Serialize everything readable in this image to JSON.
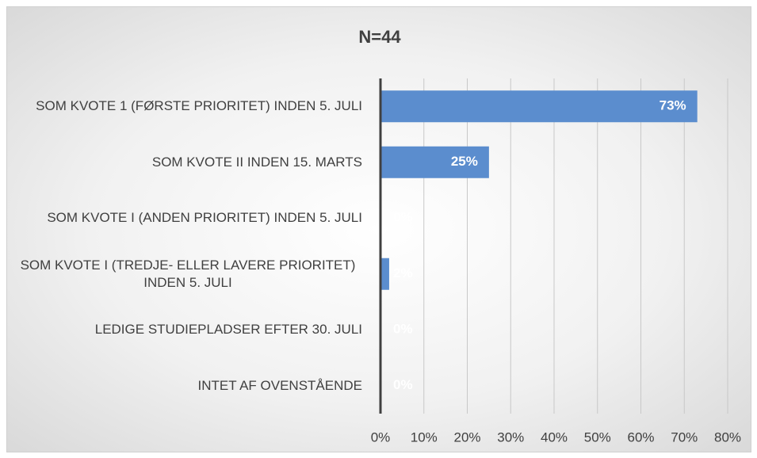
{
  "chart_data": {
    "type": "barh",
    "title": "N=44",
    "categories": [
      "SOM KVOTE 1 (FØRSTE PRIORITET) INDEN 5. JULI",
      "SOM KVOTE II INDEN 15. MARTS",
      "SOM KVOTE I (ANDEN PRIORITET) INDEN 5. JULI",
      "SOM KVOTE I (TREDJE- ELLER LAVERE PRIORITET) INDEN 5. JULI",
      "LEDIGE STUDIEPLADSER EFTER 30. JULI",
      "INTET AF OVENSTÅENDE"
    ],
    "values": [
      73,
      25,
      0,
      2,
      0,
      0
    ],
    "value_labels": [
      "73%",
      "25%",
      "0%",
      "2%",
      "0%",
      "0%"
    ],
    "color": "#5b8dce",
    "xlim": [
      0,
      80
    ],
    "xticks": [
      {
        "value": 0,
        "label": "0%"
      },
      {
        "value": 10,
        "label": "10%"
      },
      {
        "value": 20,
        "label": "20%"
      },
      {
        "value": 30,
        "label": "30%"
      },
      {
        "value": 40,
        "label": "40%"
      },
      {
        "value": 50,
        "label": "50%"
      },
      {
        "value": 60,
        "label": "60%"
      },
      {
        "value": 70,
        "label": "70%"
      },
      {
        "value": 80,
        "label": "80%"
      }
    ],
    "grid": true
  }
}
